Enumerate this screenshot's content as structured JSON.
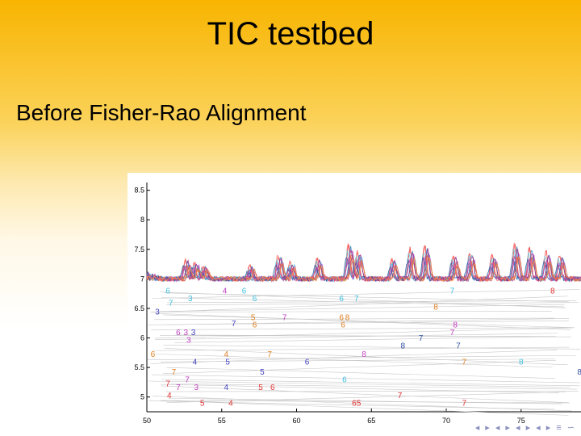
{
  "slide": {
    "title": "TIC testbed",
    "heading": "Before Fisher-Rao Alignment",
    "nav_symbols": "◂ ▸ ◂ ▸ ◂ ▸ ◂ ▸ ≡ ∽"
  },
  "chart_data": {
    "type": "line",
    "title": "",
    "xlabel": "",
    "ylabel": "",
    "xlim": [
      50,
      79
    ],
    "ylim": [
      4.75,
      8.55
    ],
    "xticks": [
      50,
      55,
      60,
      65,
      70,
      75
    ],
    "yticks": [
      5,
      5.5,
      6,
      6.5,
      7,
      7.5,
      8,
      8.5
    ],
    "ytick_labels": [
      "5",
      "5.5",
      "6",
      "6.5",
      "7",
      "7.5",
      "8",
      "8.5"
    ],
    "grid": false,
    "legend": "none",
    "series_colors": [
      "#e03030",
      "#4040c0",
      "#40c0e0",
      "#e08020",
      "#c040c0",
      "#9060d0",
      "#ff6060",
      "#2080c0",
      "#d06040",
      "#60d0e0",
      "#b02080",
      "#3050a0",
      "#e05090",
      "#ff9040"
    ],
    "peaks": [
      {
        "x": 52.6,
        "h": 0.55
      },
      {
        "x": 53.2,
        "h": 0.45
      },
      {
        "x": 53.8,
        "h": 0.35
      },
      {
        "x": 56.9,
        "h": 0.35
      },
      {
        "x": 58.8,
        "h": 0.65
      },
      {
        "x": 59.6,
        "h": 0.45
      },
      {
        "x": 61.4,
        "h": 0.55
      },
      {
        "x": 63.5,
        "h": 0.95
      },
      {
        "x": 64.1,
        "h": 0.75
      },
      {
        "x": 66.4,
        "h": 0.55
      },
      {
        "x": 67.6,
        "h": 0.85
      },
      {
        "x": 68.6,
        "h": 0.95
      },
      {
        "x": 70.5,
        "h": 0.65
      },
      {
        "x": 71.6,
        "h": 0.75
      },
      {
        "x": 73.1,
        "h": 0.65
      },
      {
        "x": 74.6,
        "h": 0.95
      },
      {
        "x": 75.6,
        "h": 0.85
      },
      {
        "x": 76.7,
        "h": 0.75
      },
      {
        "x": 77.6,
        "h": 0.65
      }
    ],
    "markers": [
      {
        "x": 51.4,
        "y": 6.75,
        "t": "6",
        "c": "#40c0e0"
      },
      {
        "x": 51.6,
        "y": 6.55,
        "t": "7",
        "c": "#40c0e0"
      },
      {
        "x": 50.7,
        "y": 6.4,
        "t": "3",
        "c": "#4040c0"
      },
      {
        "x": 52.9,
        "y": 6.62,
        "t": "3",
        "c": "#40c0e0"
      },
      {
        "x": 55.2,
        "y": 6.75,
        "t": "4",
        "c": "#c040c0"
      },
      {
        "x": 56.5,
        "y": 6.75,
        "t": "6",
        "c": "#40c0e0"
      },
      {
        "x": 57.2,
        "y": 6.62,
        "t": "6",
        "c": "#40c0e0"
      },
      {
        "x": 52.1,
        "y": 6.05,
        "t": "6",
        "c": "#c040c0"
      },
      {
        "x": 52.6,
        "y": 6.05,
        "t": "3",
        "c": "#c040c0"
      },
      {
        "x": 53.1,
        "y": 6.05,
        "t": "3",
        "c": "#4040c0"
      },
      {
        "x": 52.8,
        "y": 5.92,
        "t": "3",
        "c": "#c040c0"
      },
      {
        "x": 55.8,
        "y": 6.2,
        "t": "7",
        "c": "#4040c0"
      },
      {
        "x": 57.1,
        "y": 6.3,
        "t": "5",
        "c": "#e08020"
      },
      {
        "x": 57.2,
        "y": 6.18,
        "t": "6",
        "c": "#e08020"
      },
      {
        "x": 59.2,
        "y": 6.3,
        "t": "7",
        "c": "#c040c0"
      },
      {
        "x": 63.0,
        "y": 6.62,
        "t": "6",
        "c": "#40c0e0"
      },
      {
        "x": 64.0,
        "y": 6.62,
        "t": "7",
        "c": "#40c0e0"
      },
      {
        "x": 63.0,
        "y": 6.3,
        "t": "6",
        "c": "#e08020"
      },
      {
        "x": 63.4,
        "y": 6.3,
        "t": "8",
        "c": "#e08020"
      },
      {
        "x": 63.1,
        "y": 6.18,
        "t": "6",
        "c": "#e08020"
      },
      {
        "x": 69.3,
        "y": 6.48,
        "t": "8",
        "c": "#e08020"
      },
      {
        "x": 70.4,
        "y": 6.75,
        "t": "7",
        "c": "#40c0e0"
      },
      {
        "x": 77.1,
        "y": 6.75,
        "t": "8",
        "c": "#e03030"
      },
      {
        "x": 70.6,
        "y": 6.18,
        "t": "8",
        "c": "#c040c0"
      },
      {
        "x": 70.4,
        "y": 6.05,
        "t": "7",
        "c": "#c040c0"
      },
      {
        "x": 68.3,
        "y": 5.95,
        "t": "7",
        "c": "#3050a0"
      },
      {
        "x": 67.1,
        "y": 5.82,
        "t": "8",
        "c": "#3050a0"
      },
      {
        "x": 70.8,
        "y": 5.82,
        "t": "7",
        "c": "#3050a0"
      },
      {
        "x": 64.5,
        "y": 5.68,
        "t": "8",
        "c": "#c040c0"
      },
      {
        "x": 71.2,
        "y": 5.55,
        "t": "7",
        "c": "#e08020"
      },
      {
        "x": 75.0,
        "y": 5.55,
        "t": "8",
        "c": "#40c0e0"
      },
      {
        "x": 78.9,
        "y": 5.38,
        "t": "8",
        "c": "#3050a0"
      },
      {
        "x": 50.4,
        "y": 5.68,
        "t": "6",
        "c": "#e08020"
      },
      {
        "x": 55.3,
        "y": 5.68,
        "t": "4",
        "c": "#e08020"
      },
      {
        "x": 58.2,
        "y": 5.68,
        "t": "7",
        "c": "#e08020"
      },
      {
        "x": 53.2,
        "y": 5.55,
        "t": "4",
        "c": "#4040c0"
      },
      {
        "x": 55.4,
        "y": 5.55,
        "t": "5",
        "c": "#4040c0"
      },
      {
        "x": 60.7,
        "y": 5.55,
        "t": "6",
        "c": "#4040c0"
      },
      {
        "x": 57.7,
        "y": 5.38,
        "t": "5",
        "c": "#4040c0"
      },
      {
        "x": 51.8,
        "y": 5.38,
        "t": "7",
        "c": "#e08020"
      },
      {
        "x": 52.7,
        "y": 5.25,
        "t": "7",
        "c": "#c040c0"
      },
      {
        "x": 63.2,
        "y": 5.25,
        "t": "6",
        "c": "#40c0e0"
      },
      {
        "x": 51.4,
        "y": 5.18,
        "t": "7",
        "c": "#e03030"
      },
      {
        "x": 52.1,
        "y": 5.12,
        "t": "7",
        "c": "#c040c0"
      },
      {
        "x": 53.3,
        "y": 5.12,
        "t": "3",
        "c": "#c040c0"
      },
      {
        "x": 55.3,
        "y": 5.12,
        "t": "4",
        "c": "#4040c0"
      },
      {
        "x": 57.6,
        "y": 5.12,
        "t": "5",
        "c": "#e03030"
      },
      {
        "x": 58.4,
        "y": 5.12,
        "t": "6",
        "c": "#e03030"
      },
      {
        "x": 51.5,
        "y": 4.98,
        "t": "4",
        "c": "#e03030"
      },
      {
        "x": 53.7,
        "y": 4.85,
        "t": "5",
        "c": "#e03030"
      },
      {
        "x": 55.6,
        "y": 4.85,
        "t": "4",
        "c": "#e03030"
      },
      {
        "x": 64.0,
        "y": 4.85,
        "t": "65",
        "c": "#e03030"
      },
      {
        "x": 66.9,
        "y": 4.98,
        "t": "7",
        "c": "#e03030"
      },
      {
        "x": 71.2,
        "y": 4.85,
        "t": "7",
        "c": "#e03030"
      }
    ]
  }
}
